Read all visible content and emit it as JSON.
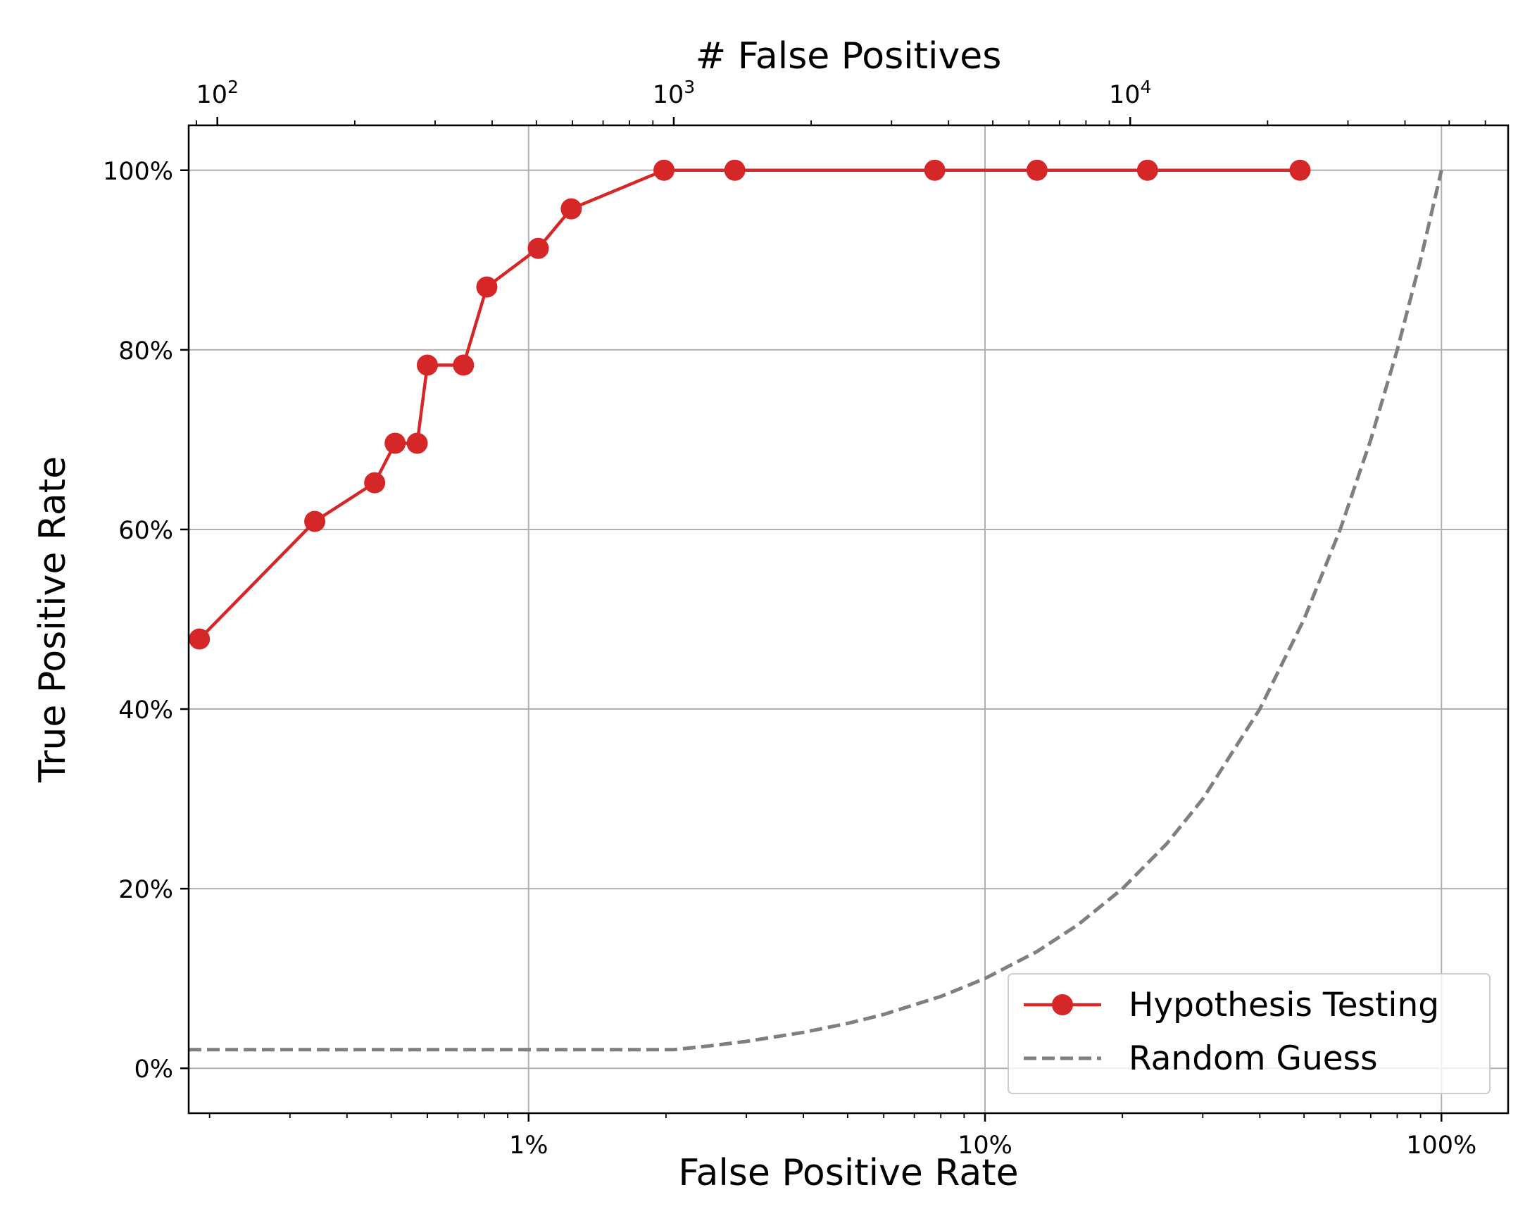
{
  "chart_data": {
    "type": "line",
    "title": "",
    "xlabel": "False Positive Rate",
    "ylabel": "True Positive Rate",
    "top_xlabel": "# False Positives",
    "x_scale": "log",
    "xlim": [
      0.0018,
      1.4
    ],
    "ylim": [
      -0.05,
      1.05
    ],
    "grid": true,
    "x_ticks": [
      {
        "value": 0.01,
        "label": "1%"
      },
      {
        "value": 0.1,
        "label": "10%"
      },
      {
        "value": 1.0,
        "label": "100%"
      }
    ],
    "y_ticks": [
      {
        "value": 0.0,
        "label": "0%"
      },
      {
        "value": 0.2,
        "label": "20%"
      },
      {
        "value": 0.4,
        "label": "40%"
      },
      {
        "value": 0.6,
        "label": "60%"
      },
      {
        "value": 0.8,
        "label": "80%"
      },
      {
        "value": 1.0,
        "label": "100%"
      }
    ],
    "top_x_ticks": [
      {
        "value": 0.00208,
        "base": "10",
        "exp": "2"
      },
      {
        "value": 0.0208,
        "base": "10",
        "exp": "3"
      },
      {
        "value": 0.208,
        "base": "10",
        "exp": "4"
      }
    ],
    "series": [
      {
        "name": "Hypothesis Testing",
        "color": "#d62728",
        "style": "solid",
        "marker": "circle",
        "x": [
          0.0019,
          0.0034,
          0.0046,
          0.0051,
          0.0057,
          0.006,
          0.0072,
          0.0081,
          0.0105,
          0.0124,
          0.0198,
          0.0283,
          0.0776,
          0.13,
          0.227,
          0.49
        ],
        "y": [
          0.478,
          0.609,
          0.652,
          0.696,
          0.696,
          0.783,
          0.783,
          0.87,
          0.913,
          0.957,
          1.0,
          1.0,
          1.0,
          1.0,
          1.0,
          1.0
        ]
      },
      {
        "name": "Random Guess",
        "color": "#7f7f7f",
        "style": "dashed",
        "marker": "none",
        "x": [
          0.0018,
          0.0025,
          0.004,
          0.006,
          0.01,
          0.015,
          0.0208,
          0.025,
          0.03,
          0.04,
          0.05,
          0.06,
          0.08,
          0.1,
          0.13,
          0.16,
          0.2,
          0.25,
          0.3,
          0.4,
          0.5,
          0.6,
          0.7,
          0.8,
          0.9,
          1.0
        ],
        "y": [
          0.0208,
          0.0208,
          0.0208,
          0.0208,
          0.0208,
          0.0208,
          0.0208,
          0.025,
          0.03,
          0.04,
          0.05,
          0.06,
          0.08,
          0.1,
          0.13,
          0.16,
          0.2,
          0.25,
          0.3,
          0.4,
          0.5,
          0.6,
          0.7,
          0.8,
          0.9,
          1.0
        ]
      }
    ],
    "legend": {
      "position": "bottom-right",
      "entries": [
        "Hypothesis Testing",
        "Random Guess"
      ]
    }
  }
}
